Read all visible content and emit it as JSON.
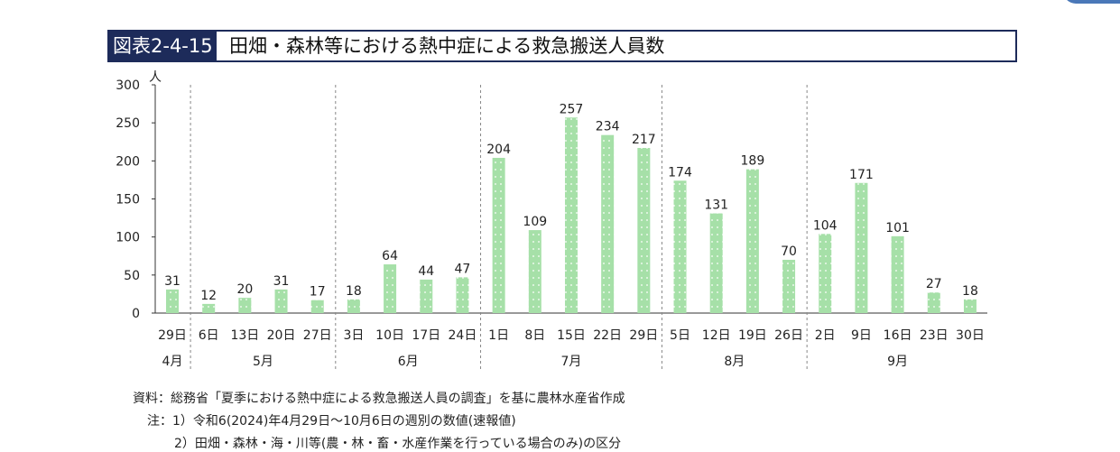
{
  "title": {
    "badge": "図表2-4-15",
    "text": "田畑・森林等における熱中症による救急搬送人員数"
  },
  "chart_data": {
    "type": "bar",
    "y_unit": "人",
    "ylim": [
      0,
      300
    ],
    "yticks": [
      "0",
      "50",
      "100",
      "150",
      "200",
      "250",
      "300"
    ],
    "grid": false,
    "bar_color": "#a6e0a8",
    "categories": [
      "29日",
      "6日",
      "13日",
      "20日",
      "27日",
      "3日",
      "10日",
      "17日",
      "24日",
      "1日",
      "8日",
      "15日",
      "22日",
      "29日",
      "5日",
      "12日",
      "19日",
      "26日",
      "2日",
      "9日",
      "16日",
      "23日",
      "30日"
    ],
    "values": [
      31,
      12,
      20,
      31,
      17,
      18,
      64,
      44,
      47,
      204,
      109,
      257,
      234,
      217,
      174,
      131,
      189,
      70,
      104,
      171,
      101,
      27,
      18
    ],
    "month_groups": [
      {
        "label": "4月",
        "count": 1
      },
      {
        "label": "5月",
        "count": 4
      },
      {
        "label": "6月",
        "count": 4
      },
      {
        "label": "7月",
        "count": 5
      },
      {
        "label": "8月",
        "count": 4
      },
      {
        "label": "9月",
        "count": 5
      }
    ]
  },
  "notes": {
    "source": "資料：総務省「夏季における熱中症による救急搬送人員の調査」を基に農林水産省作成",
    "note1": "注：1）令和6(2024)年4月29日～10月6日の週別の数値(速報値)",
    "note2": "2）田畑・森林・海・川等(農・林・畜・水産作業を行っている場合のみ)の区分"
  }
}
